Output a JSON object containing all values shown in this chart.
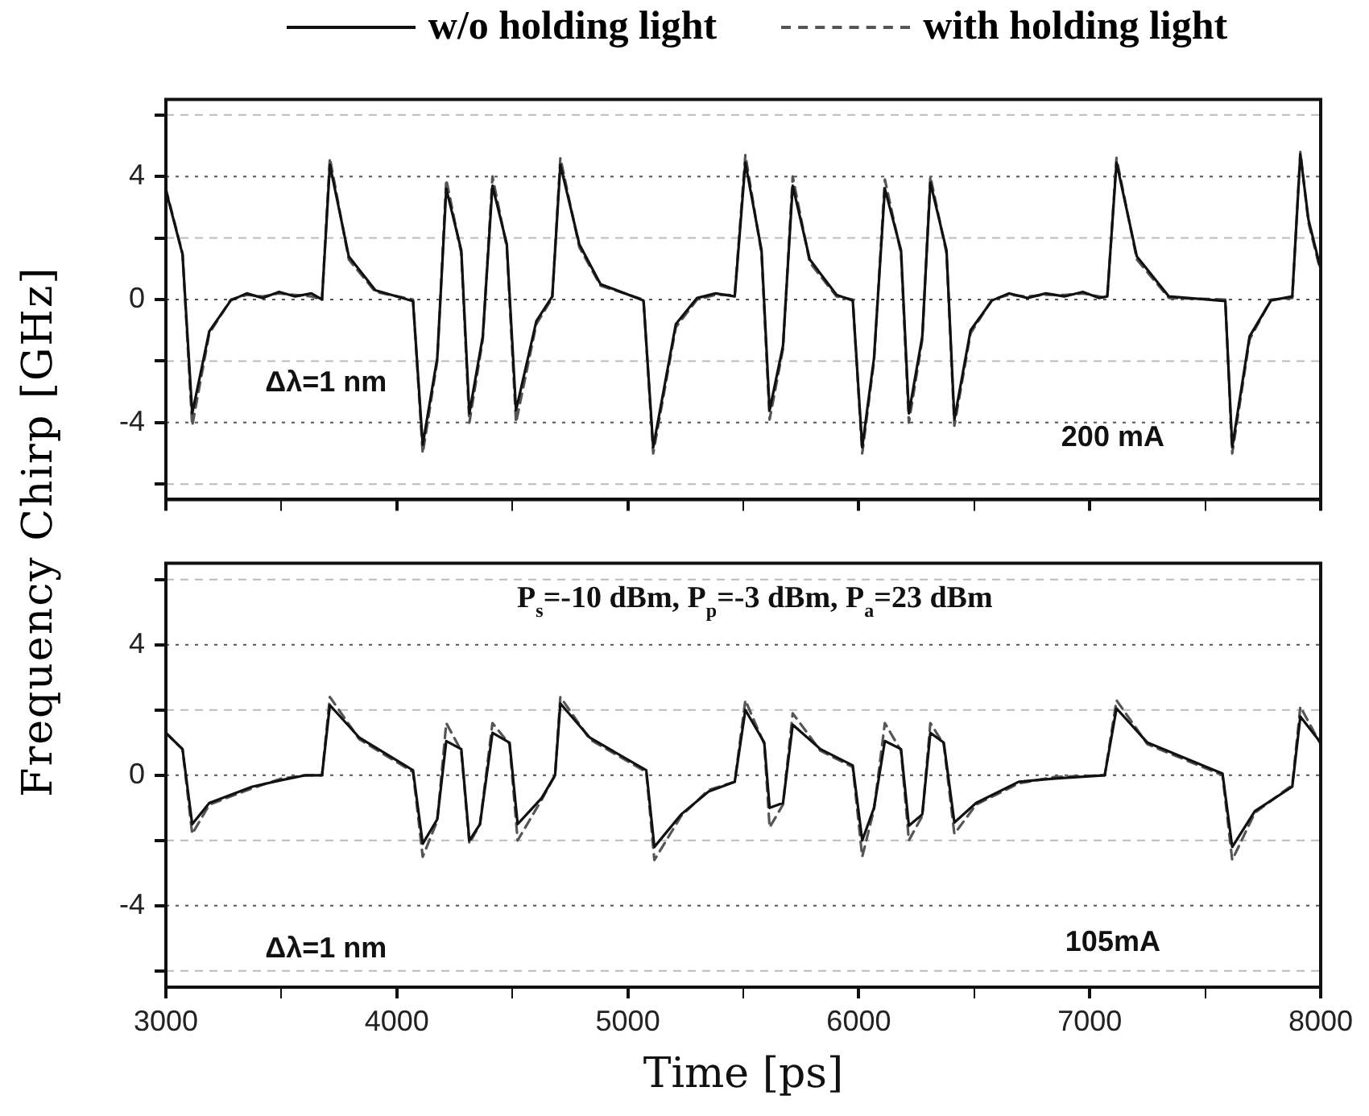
{
  "chart_data": [
    {
      "type": "line",
      "ylabel": "Frequency Chirp [GHz]",
      "legend": "top",
      "grid": "y",
      "tick_labels": "y",
      "marker": "none",
      "annotations": [
        "Δλ=1 nm",
        "200 mA"
      ],
      "xlim": [
        3000,
        8000
      ],
      "xticks": [
        3000,
        {
          "value": 3500,
          "label": null
        },
        4000,
        {
          "value": 4500,
          "label": null
        },
        5000,
        {
          "value": 5500,
          "label": null
        },
        6000,
        {
          "value": 6500,
          "label": null
        },
        7000,
        {
          "value": 7500,
          "label": null
        },
        8000
      ],
      "ylim": [
        -6.5,
        6.5
      ],
      "yticks": [
        {
          "value": -6,
          "label": null
        },
        -4,
        {
          "value": -2,
          "label": null
        },
        0,
        {
          "value": 2,
          "label": null
        },
        4,
        {
          "value": 6,
          "label": null
        }
      ],
      "x": [
        3000,
        3072,
        3114,
        3188,
        3281,
        3350,
        3420,
        3490,
        3560,
        3630,
        3676,
        3710,
        3792,
        3907,
        4070,
        4112,
        4175,
        4214,
        4279,
        4314,
        4372,
        4414,
        4476,
        4516,
        4604,
        4673,
        4708,
        4790,
        4882,
        5068,
        5110,
        5208,
        5300,
        5380,
        5463,
        5509,
        5579,
        5614,
        5672,
        5714,
        5788,
        5904,
        5974,
        6015,
        6066,
        6113,
        6183,
        6217,
        6275,
        6310,
        6380,
        6414,
        6484,
        6577,
        6650,
        6730,
        6810,
        6890,
        6970,
        7040,
        7076,
        7116,
        7204,
        7343,
        7587,
        7617,
        7692,
        7785,
        7877,
        7912,
        7947,
        8000
      ],
      "series": [
        {
          "name": "w/o holding light",
          "color": "#111111",
          "line_style": "solid",
          "values": [
            3.55,
            1.47,
            -3.7,
            -1.03,
            -0.03,
            0.2,
            0.05,
            0.25,
            0.1,
            0.2,
            0,
            4.38,
            1.4,
            0.3,
            -0.05,
            -4.72,
            -1.9,
            3.6,
            1.6,
            -3.7,
            -1.2,
            3.7,
            1.8,
            -3.6,
            -0.7,
            0.1,
            4.38,
            1.8,
            0.5,
            -0.03,
            -4.8,
            -0.8,
            0.05,
            0.2,
            0.1,
            4.45,
            1.6,
            -3.6,
            -1.5,
            3.7,
            1.3,
            0.15,
            -0.03,
            -4.8,
            -1.9,
            3.6,
            1.6,
            -3.7,
            -1.2,
            3.8,
            1.6,
            -3.9,
            -1.0,
            -0.03,
            0.2,
            0.05,
            0.2,
            0.1,
            0.25,
            0.05,
            0.1,
            4.45,
            1.4,
            0.1,
            -0.05,
            -4.8,
            -1.2,
            -0.03,
            0.1,
            4.72,
            2.6,
            1.0
          ]
        },
        {
          "name": "with holding light",
          "color": "#555555",
          "line_style": "dashed",
          "values": [
            3.6,
            1.5,
            -4.1,
            -1.1,
            0,
            0.15,
            0.1,
            0.2,
            0.15,
            0.1,
            0,
            4.6,
            1.3,
            0.25,
            0,
            -5.0,
            -2.0,
            3.9,
            1.5,
            -4.0,
            -1.3,
            4.0,
            1.7,
            -4.0,
            -0.8,
            0.05,
            4.6,
            1.7,
            0.45,
            0,
            -5.0,
            -0.9,
            0,
            0.15,
            0.15,
            4.7,
            1.5,
            -3.9,
            -1.6,
            4.0,
            1.2,
            0.1,
            0,
            -5.0,
            -2.0,
            3.9,
            1.5,
            -4.0,
            -1.3,
            4.0,
            1.5,
            -4.1,
            -1.1,
            0,
            0.15,
            0.1,
            0.15,
            0.15,
            0.2,
            0.1,
            0.05,
            4.6,
            1.3,
            0.05,
            0,
            -5.0,
            -1.3,
            0,
            0.05,
            4.8,
            2.5,
            0.9
          ]
        }
      ]
    },
    {
      "type": "line",
      "xlabel": "Time [ps]",
      "grid": "y",
      "marker": "none",
      "annotations": [
        "P$_{s}$=-10 dBm, P$_{p}$=-3 dBm, P$_{a}$=23 dBm",
        "Δλ=1 nm",
        "105mA"
      ],
      "xlim": [
        3000,
        8000
      ],
      "xticks": [
        3000,
        {
          "value": 3500,
          "label": null
        },
        4000,
        {
          "value": 4500,
          "label": null
        },
        5000,
        {
          "value": 5500,
          "label": null
        },
        6000,
        {
          "value": 6500,
          "label": null
        },
        7000,
        {
          "value": 7500,
          "label": null
        },
        8000
      ],
      "ylim": [
        -6.5,
        6.5
      ],
      "yticks": [
        {
          "value": -6,
          "label": null
        },
        -4,
        {
          "value": -2,
          "label": null
        },
        0,
        {
          "value": 2,
          "label": null
        },
        4,
        {
          "value": 6,
          "label": null
        }
      ],
      "x": [
        3000,
        3072,
        3114,
        3188,
        3374,
        3500,
        3606,
        3676,
        3710,
        3838,
        4070,
        4112,
        4175,
        4214,
        4279,
        4314,
        4360,
        4414,
        4488,
        4523,
        4627,
        4685,
        4708,
        4836,
        5080,
        5115,
        5231,
        5350,
        5463,
        5509,
        5591,
        5614,
        5672,
        5714,
        5834,
        5974,
        6015,
        6066,
        6113,
        6183,
        6217,
        6275,
        6310,
        6368,
        6414,
        6508,
        6693,
        6850,
        7065,
        7116,
        7250,
        7575,
        7617,
        7715,
        7877,
        7912,
        8000
      ],
      "series": [
        {
          "color": "#111111",
          "line_style": "solid",
          "values": [
            1.3,
            0.8,
            -1.5,
            -0.85,
            -0.35,
            -0.15,
            0,
            0,
            2.15,
            1.15,
            0.15,
            -2.1,
            -1.35,
            1.05,
            0.8,
            -2.0,
            -1.5,
            1.3,
            1.0,
            -1.5,
            -0.7,
            0,
            2.2,
            1.15,
            0.15,
            -2.2,
            -1.2,
            -0.5,
            -0.2,
            2.0,
            1.0,
            -1.0,
            -0.85,
            1.55,
            0.8,
            0.3,
            -2.0,
            -1.0,
            1.05,
            0.8,
            -1.55,
            -1.2,
            1.3,
            1.0,
            -1.45,
            -0.85,
            -0.2,
            -0.1,
            0,
            2.05,
            1.0,
            0.05,
            -2.2,
            -1.1,
            -0.35,
            1.8,
            1.0
          ]
        },
        {
          "color": "#555555",
          "line_style": "dashed",
          "values": [
            1.3,
            0.8,
            -1.8,
            -0.9,
            -0.4,
            -0.1,
            0,
            0,
            2.4,
            1.1,
            0.1,
            -2.5,
            -1.4,
            1.6,
            0.75,
            -2.1,
            -1.5,
            1.6,
            0.95,
            -2.0,
            -0.75,
            0,
            2.4,
            1.1,
            0.1,
            -2.6,
            -1.25,
            -0.45,
            -0.2,
            2.3,
            0.95,
            -1.6,
            -0.9,
            1.9,
            0.75,
            0.25,
            -2.5,
            -1.05,
            1.6,
            0.75,
            -2.0,
            -1.25,
            1.6,
            0.95,
            -1.8,
            -0.9,
            -0.25,
            -0.05,
            0,
            2.3,
            0.95,
            0,
            -2.6,
            -1.15,
            -0.3,
            2.1,
            0.95
          ]
        }
      ]
    }
  ]
}
